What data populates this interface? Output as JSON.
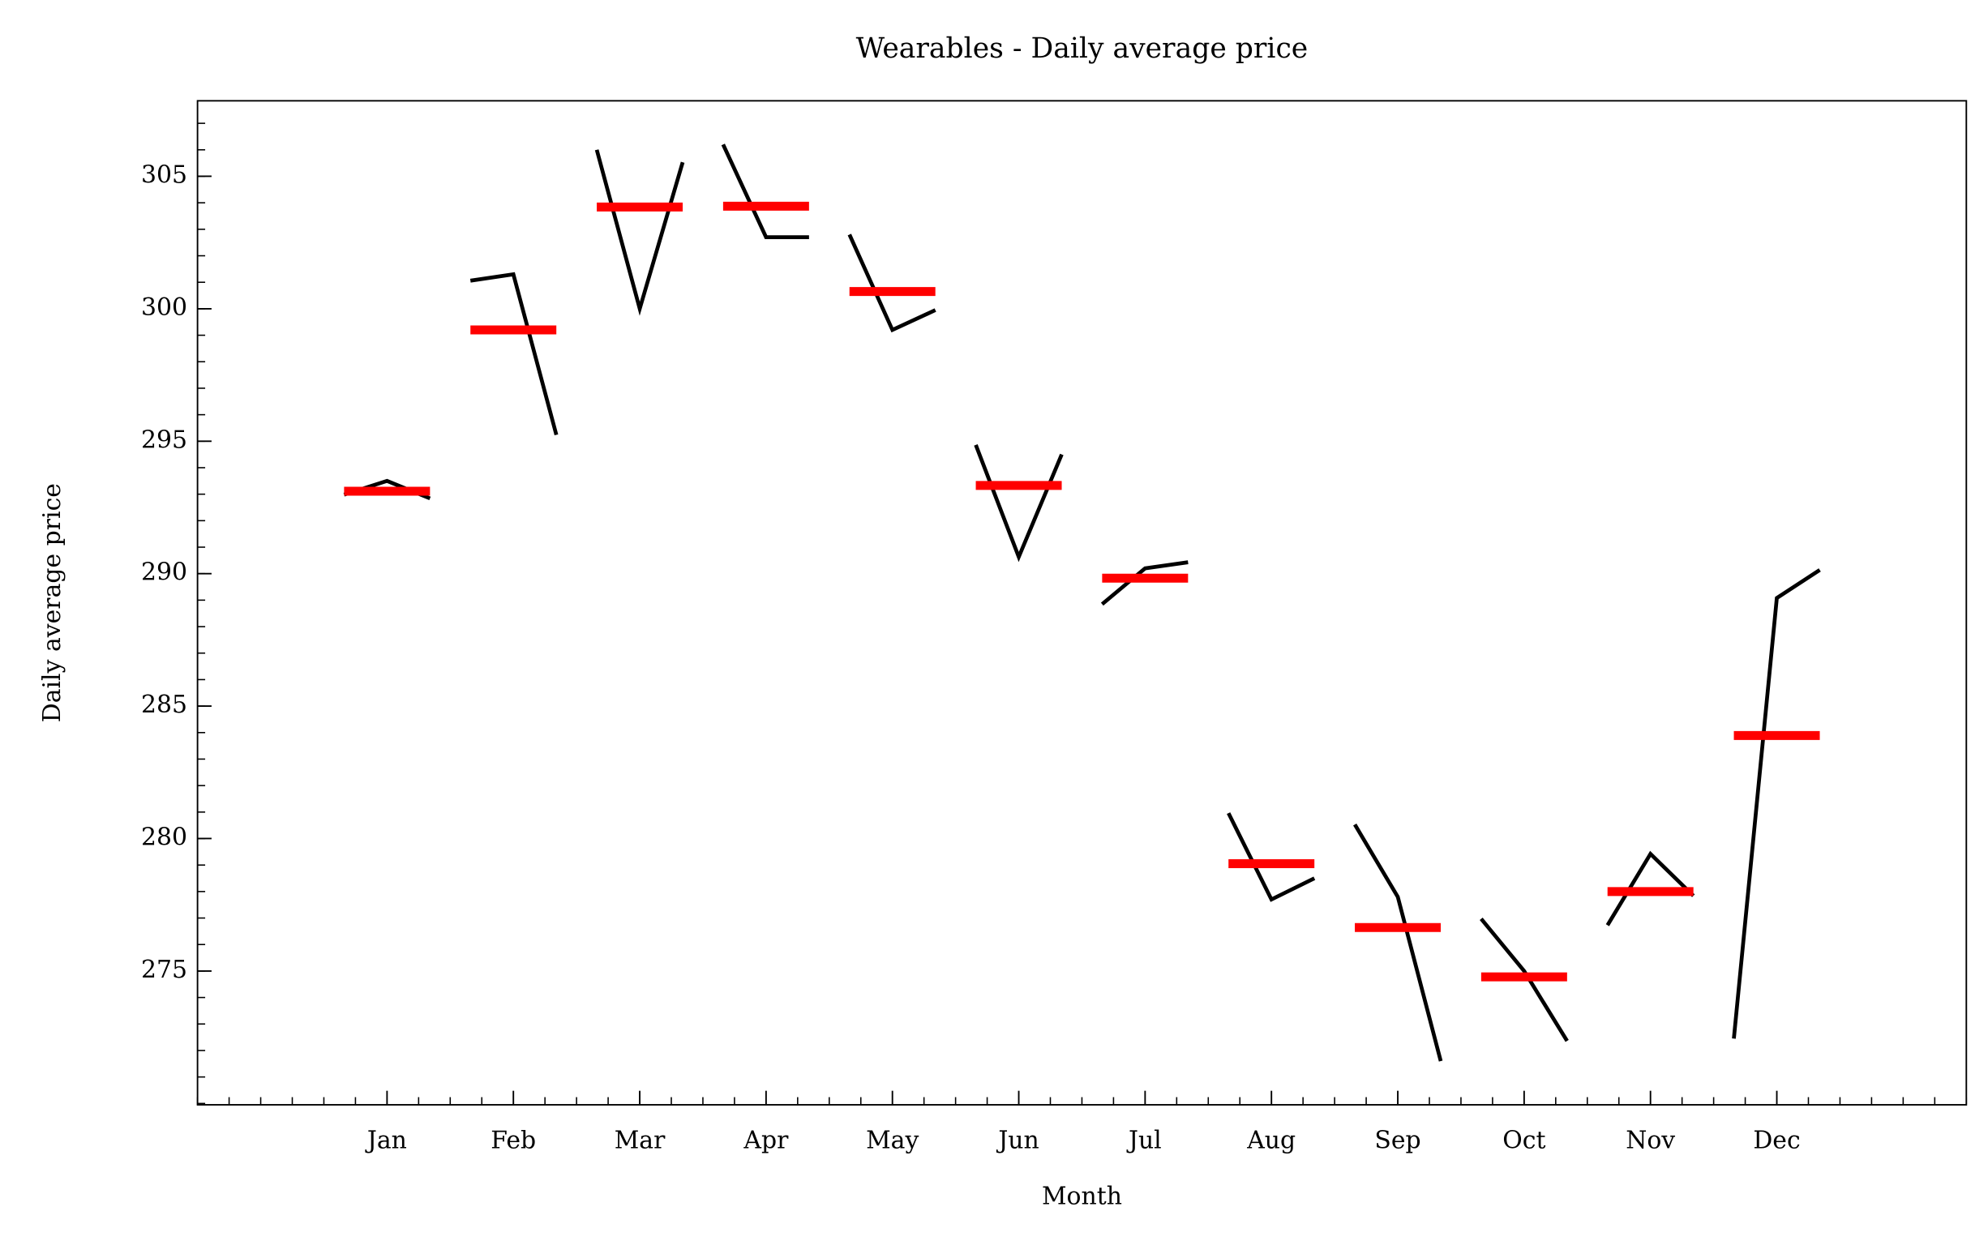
{
  "chart_data": {
    "type": "month_plot",
    "title": "Wearables - Daily average price",
    "xlabel": "Month",
    "ylabel": "Daily average price",
    "categories": [
      "Jan",
      "Feb",
      "Mar",
      "Apr",
      "May",
      "Jun",
      "Jul",
      "Aug",
      "Sep",
      "Oct",
      "Nov",
      "Dec"
    ],
    "values": [
      [
        292.98,
        293.5,
        292.84
      ],
      [
        301.06,
        301.3,
        295.24
      ],
      [
        306.0,
        300.0,
        305.53
      ],
      [
        306.2,
        302.7,
        302.7
      ],
      [
        302.8,
        299.2,
        299.95
      ],
      [
        294.86,
        290.63,
        294.5
      ],
      [
        288.85,
        290.2,
        290.43
      ],
      [
        280.96,
        277.7,
        278.5
      ],
      [
        280.53,
        277.8,
        271.6
      ],
      [
        276.97,
        275.0,
        272.36
      ],
      [
        276.73,
        279.42,
        277.84
      ],
      [
        272.45,
        289.08,
        290.14
      ]
    ],
    "means": [
      293.11,
      299.2,
      303.84,
      303.87,
      300.65,
      293.33,
      289.83,
      279.05,
      276.64,
      274.78,
      278.0,
      283.89
    ],
    "line_color": "#000000",
    "mean_color": "#ff0000",
    "xlim": [
      -1.5,
      12.5
    ],
    "ylim": [
      269.95,
      307.85
    ],
    "yticks": [
      275,
      280,
      285,
      290,
      295,
      300,
      305
    ]
  }
}
